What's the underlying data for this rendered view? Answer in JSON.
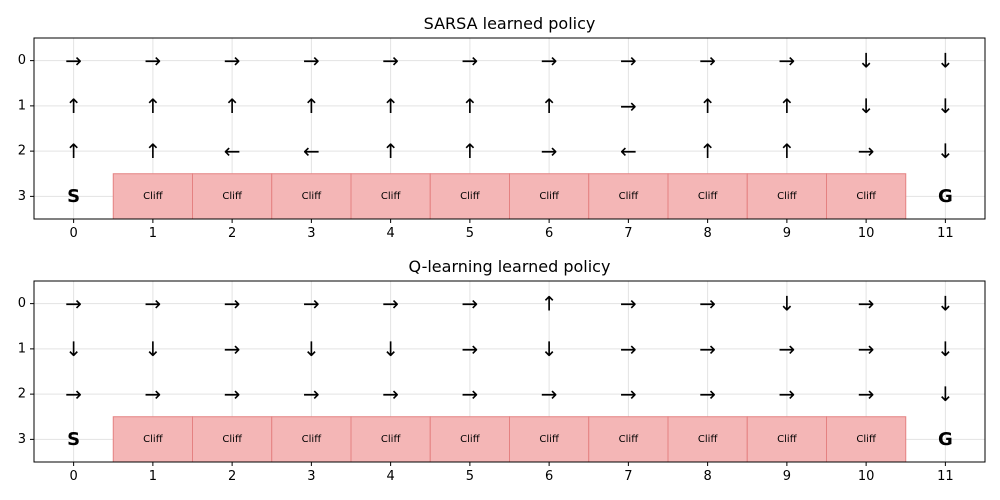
{
  "figure": {
    "panels": [
      {
        "title": "SARSA learned policy",
        "x_ticks": [
          "0",
          "1",
          "2",
          "3",
          "4",
          "5",
          "6",
          "7",
          "8",
          "9",
          "10",
          "11"
        ],
        "y_ticks": [
          "0",
          "1",
          "2",
          "3"
        ],
        "policy": [
          [
            "→",
            "→",
            "→",
            "→",
            "→",
            "→",
            "→",
            "→",
            "→",
            "→",
            "↓",
            "↓"
          ],
          [
            "↑",
            "↑",
            "↑",
            "↑",
            "↑",
            "↑",
            "↑",
            "→",
            "↑",
            "↑",
            "↓",
            "↓"
          ],
          [
            "↑",
            "↑",
            "←",
            "←",
            "↑",
            "↑",
            "→",
            "←",
            "↑",
            "↑",
            "→",
            "↓"
          ]
        ],
        "cliff_label": "Cliff",
        "cliff_columns": [
          1,
          2,
          3,
          4,
          5,
          6,
          7,
          8,
          9,
          10
        ],
        "start_label": "S",
        "goal_label": "G"
      },
      {
        "title": "Q-learning learned policy",
        "x_ticks": [
          "0",
          "1",
          "2",
          "3",
          "4",
          "5",
          "6",
          "7",
          "8",
          "9",
          "10",
          "11"
        ],
        "y_ticks": [
          "0",
          "1",
          "2",
          "3"
        ],
        "policy": [
          [
            "→",
            "→",
            "→",
            "→",
            "→",
            "→",
            "↑",
            "→",
            "→",
            "↓",
            "→",
            "↓"
          ],
          [
            "↓",
            "↓",
            "→",
            "↓",
            "↓",
            "→",
            "↓",
            "→",
            "→",
            "→",
            "→",
            "↓"
          ],
          [
            "→",
            "→",
            "→",
            "→",
            "→",
            "→",
            "→",
            "→",
            "→",
            "→",
            "→",
            "↓"
          ]
        ],
        "cliff_label": "Cliff",
        "cliff_columns": [
          1,
          2,
          3,
          4,
          5,
          6,
          7,
          8,
          9,
          10
        ],
        "start_label": "S",
        "goal_label": "G"
      }
    ],
    "colors": {
      "cliff_fill": "#f4b6b6",
      "cliff_edge": "#e48181",
      "grid": "#e3e3e3",
      "frame": "#000000"
    }
  }
}
